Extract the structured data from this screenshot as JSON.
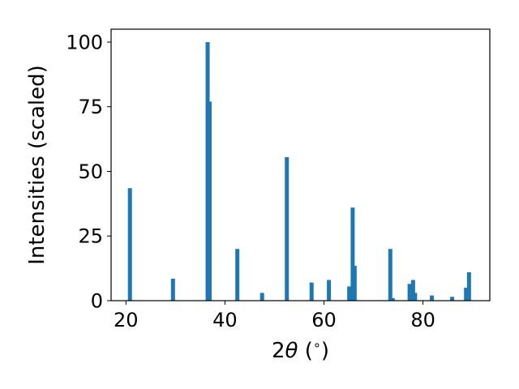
{
  "chart_data": {
    "type": "bar",
    "xlabel_parts": {
      "pre": "2",
      "theta": "θ",
      "unit_open": " (",
      "degree": "∘",
      "unit_close": ")"
    },
    "ylabel": "Intensities (scaled)",
    "xlim": [
      17.0,
      93.5
    ],
    "ylim": [
      0,
      105
    ],
    "xticks": [
      20,
      40,
      60,
      80
    ],
    "yticks": [
      0,
      25,
      50,
      75,
      100
    ],
    "bar_color": "#1f77b4",
    "grid": false,
    "legend": "none",
    "bars": [
      {
        "x": 20.8,
        "y": 43.5
      },
      {
        "x": 29.5,
        "y": 8.5
      },
      {
        "x": 36.5,
        "y": 100
      },
      {
        "x": 36.9,
        "y": 77
      },
      {
        "x": 42.5,
        "y": 20
      },
      {
        "x": 47.5,
        "y": 3
      },
      {
        "x": 52.5,
        "y": 55.5
      },
      {
        "x": 57.5,
        "y": 7
      },
      {
        "x": 61.0,
        "y": 8
      },
      {
        "x": 65.1,
        "y": 5.5
      },
      {
        "x": 65.8,
        "y": 36
      },
      {
        "x": 66.2,
        "y": 13.5
      },
      {
        "x": 73.4,
        "y": 20
      },
      {
        "x": 73.9,
        "y": 1
      },
      {
        "x": 77.3,
        "y": 6.5
      },
      {
        "x": 78.0,
        "y": 8
      },
      {
        "x": 78.4,
        "y": 3
      },
      {
        "x": 81.8,
        "y": 2
      },
      {
        "x": 85.9,
        "y": 1.5
      },
      {
        "x": 88.7,
        "y": 5
      },
      {
        "x": 89.3,
        "y": 11
      }
    ]
  }
}
